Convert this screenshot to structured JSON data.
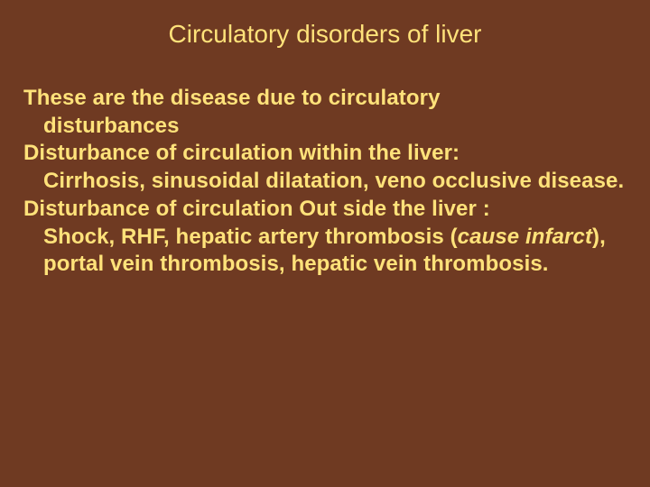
{
  "slide": {
    "background_color": "#6f3a22",
    "text_color": "#ffe27a",
    "title": "Circulatory disorders of liver",
    "title_fontsize": 28,
    "title_fontweight": 400,
    "body_fontsize": 24,
    "body_fontweight": 700,
    "line1": "These are the disease due to circulatory",
    "line1_indent": "disturbances",
    "line2": "Disturbance of circulation within the liver:",
    "line2_indent": "Cirrhosis, sinusoidal dilatation, veno occlusive disease.",
    "line3": "Disturbance of circulation Out side the liver :",
    "line3_indent_pre": "Shock, RHF, hepatic artery thrombosis (",
    "line3_indent_ital": "cause infarct",
    "line3_indent_post": "), portal vein thrombosis, hepatic vein thrombosis."
  }
}
